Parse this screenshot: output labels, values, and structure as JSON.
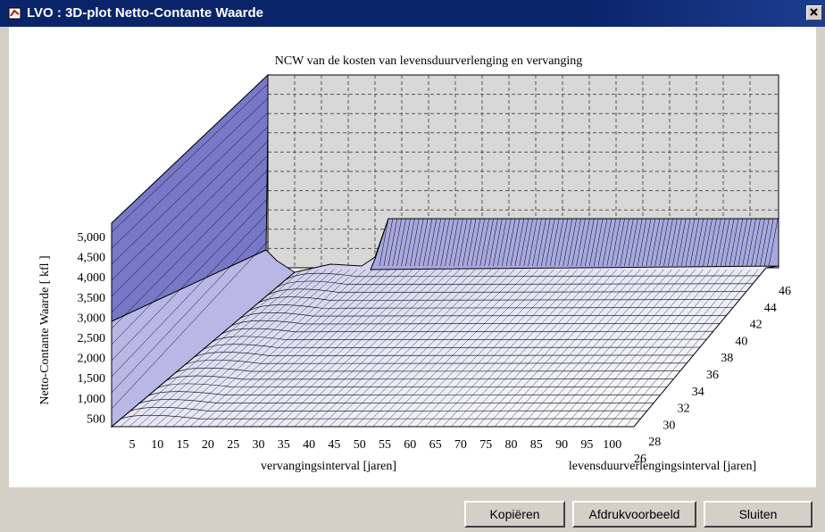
{
  "window": {
    "title": "LVO : 3D-plot Netto-Contante Waarde"
  },
  "chart": {
    "title": "NCW van de kosten van levensduurverlenging en vervanging",
    "y_axis_label": "Netto-Contante Waarde [ kfl ]",
    "x_axis_label": "vervangingsinterval [jaren]",
    "z_axis_label": "levensduurverlengingsinterval [jaren]",
    "y_tick_labels": [
      "5,000",
      "4,500",
      "4,000",
      "3,500",
      "3,000",
      "2,500",
      "2,000",
      "1,500",
      "1,000",
      "500"
    ],
    "x_tick_labels": [
      "5",
      "10",
      "15",
      "20",
      "25",
      "30",
      "35",
      "40",
      "45",
      "50",
      "55",
      "60",
      "65",
      "70",
      "75",
      "80",
      "85",
      "90",
      "95",
      "100"
    ],
    "z_tick_labels": [
      "26",
      "28",
      "30",
      "32",
      "34",
      "36",
      "38",
      "40",
      "42",
      "44",
      "46"
    ]
  },
  "buttons": [
    "Kopiëren",
    "Afdrukvoorbeeld",
    "Sluiten"
  ]
}
